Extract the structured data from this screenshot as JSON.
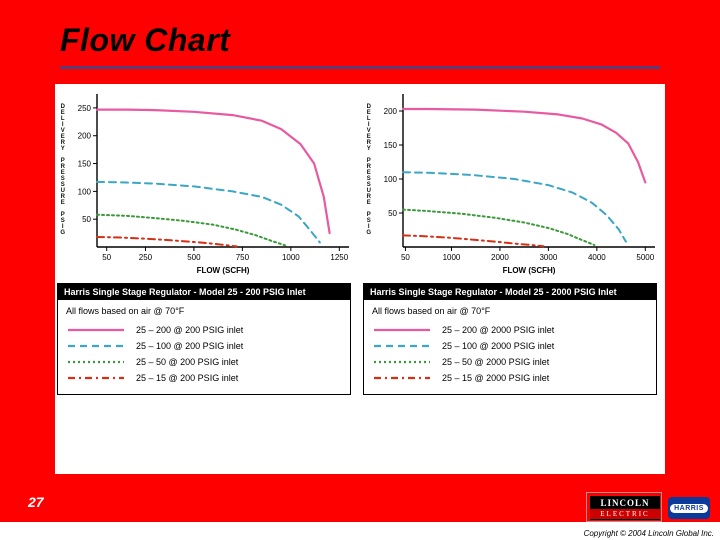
{
  "slide": {
    "title": "Flow Chart",
    "number": "27",
    "background_color": "#ff0000",
    "title_color": "#000000",
    "title_font_size": 32,
    "title_italic": true,
    "title_bold": true,
    "rule_color": "#5a3e73"
  },
  "footer": {
    "copyright": "Copyright © 2004 Lincoln Global Inc.",
    "lincoln_top": "LINCOLN",
    "lincoln_bottom": "ELECTRIC",
    "harris": "HARRIS"
  },
  "colors": {
    "series_pink": "#e85aa0",
    "series_cyan": "#3aa7c4",
    "series_green": "#3a9a3a",
    "series_red": "#d62f16",
    "axis": "#000000",
    "grid": "#000000",
    "tick_font_size": 8,
    "axis_label_font_size": 8,
    "line_width_main": 2.2,
    "line_width_dash": 2.0,
    "chart_background": "#ffffff"
  },
  "panel_left": {
    "chart": {
      "type": "line",
      "xlim": [
        0,
        1300
      ],
      "ylim": [
        0,
        275
      ],
      "x_ticks": [
        50,
        250,
        500,
        750,
        1000,
        1250
      ],
      "x_tick_labels": [
        "50",
        "250",
        "500",
        "750",
        "1000",
        "1250"
      ],
      "y_ticks": [
        50,
        100,
        150,
        200,
        250
      ],
      "y_tick_labels": [
        "50",
        "100",
        "150",
        "200",
        "250"
      ],
      "xlabel": "FLOW (SCFH)",
      "ylabel_main": "DELIVERY",
      "ylabel_sub": "PRESSURE",
      "ylabel_unit": "PSIG",
      "series": [
        {
          "name": "25-200",
          "color_key": "series_pink",
          "style": "solid",
          "x": [
            0,
            150,
            300,
            500,
            700,
            850,
            950,
            1050,
            1120,
            1170,
            1200
          ],
          "y": [
            247,
            247,
            246,
            243,
            237,
            227,
            212,
            185,
            150,
            90,
            25
          ]
        },
        {
          "name": "25-100",
          "color_key": "series_cyan",
          "style": "dash",
          "x": [
            0,
            150,
            300,
            500,
            700,
            850,
            950,
            1040,
            1100,
            1150
          ],
          "y": [
            117,
            116,
            114,
            109,
            100,
            90,
            76,
            55,
            30,
            8
          ]
        },
        {
          "name": "25-50",
          "color_key": "series_green",
          "style": "dot",
          "x": [
            0,
            150,
            300,
            450,
            600,
            720,
            820,
            900,
            970
          ],
          "y": [
            58,
            56,
            52,
            47,
            40,
            31,
            21,
            11,
            3
          ]
        },
        {
          "name": "25-15",
          "color_key": "series_red",
          "style": "dashdot",
          "x": [
            0,
            120,
            250,
            380,
            500,
            600,
            670,
            720
          ],
          "y": [
            18,
            17,
            15,
            12,
            9,
            6,
            3,
            1
          ]
        }
      ]
    },
    "legend": {
      "title": "Harris Single Stage Regulator - Model 25 - 200 PSIG Inlet",
      "note": "All flows based on air @ 70°F",
      "rows": [
        {
          "color_key": "series_pink",
          "style": "solid",
          "label": "25 – 200 @ 200 PSIG inlet"
        },
        {
          "color_key": "series_cyan",
          "style": "dash",
          "label": "25 – 100 @ 200 PSIG inlet"
        },
        {
          "color_key": "series_green",
          "style": "dot",
          "label": "25 – 50 @ 200 PSIG inlet"
        },
        {
          "color_key": "series_red",
          "style": "dashdot",
          "label": "25 – 15 @ 200 PSIG inlet"
        }
      ]
    }
  },
  "panel_right": {
    "chart": {
      "type": "line",
      "xlim": [
        0,
        5200
      ],
      "ylim": [
        0,
        225
      ],
      "x_ticks": [
        50,
        1000,
        2000,
        3000,
        4000,
        5000
      ],
      "x_tick_labels": [
        "50",
        "1000",
        "2000",
        "3000",
        "4000",
        "5000"
      ],
      "y_ticks": [
        50,
        100,
        150,
        200
      ],
      "y_tick_labels": [
        "50",
        "100",
        "150",
        "200"
      ],
      "xlabel": "FLOW (SCFH)",
      "ylabel_main": "DELIVERY",
      "ylabel_sub": "PRESSURE",
      "ylabel_unit": "PSIG",
      "series": [
        {
          "name": "25-200",
          "color_key": "series_pink",
          "style": "solid",
          "x": [
            0,
            500,
            1500,
            2500,
            3200,
            3700,
            4100,
            4400,
            4650,
            4850,
            5000
          ],
          "y": [
            203,
            203,
            202,
            199,
            195,
            189,
            180,
            168,
            152,
            125,
            95
          ]
        },
        {
          "name": "25-100",
          "color_key": "series_cyan",
          "style": "dash",
          "x": [
            0,
            600,
            1400,
            2300,
            3000,
            3500,
            3900,
            4200,
            4450,
            4600
          ],
          "y": [
            110,
            109,
            106,
            100,
            91,
            80,
            65,
            47,
            26,
            8
          ]
        },
        {
          "name": "25-50",
          "color_key": "series_green",
          "style": "dot",
          "x": [
            0,
            500,
            1200,
            1900,
            2500,
            3000,
            3400,
            3700,
            3950
          ],
          "y": [
            55,
            53,
            49,
            43,
            36,
            28,
            19,
            10,
            3
          ]
        },
        {
          "name": "25-15",
          "color_key": "series_red",
          "style": "dashdot",
          "x": [
            0,
            400,
            900,
            1400,
            1900,
            2300,
            2650,
            2900
          ],
          "y": [
            17,
            16,
            14,
            11,
            8,
            5,
            3,
            1
          ]
        }
      ]
    },
    "legend": {
      "title": "Harris Single Stage Regulator - Model 25 - 2000 PSIG Inlet",
      "note": "All flows based on air @ 70°F",
      "rows": [
        {
          "color_key": "series_pink",
          "style": "solid",
          "label": "25 – 200 @ 2000 PSIG inlet"
        },
        {
          "color_key": "series_cyan",
          "style": "dash",
          "label": "25 – 100 @ 2000 PSIG inlet"
        },
        {
          "color_key": "series_green",
          "style": "dot",
          "label": "25 – 50 @ 2000 PSIG inlet"
        },
        {
          "color_key": "series_red",
          "style": "dashdot",
          "label": "25 – 15 @ 2000 PSIG inlet"
        }
      ]
    }
  }
}
